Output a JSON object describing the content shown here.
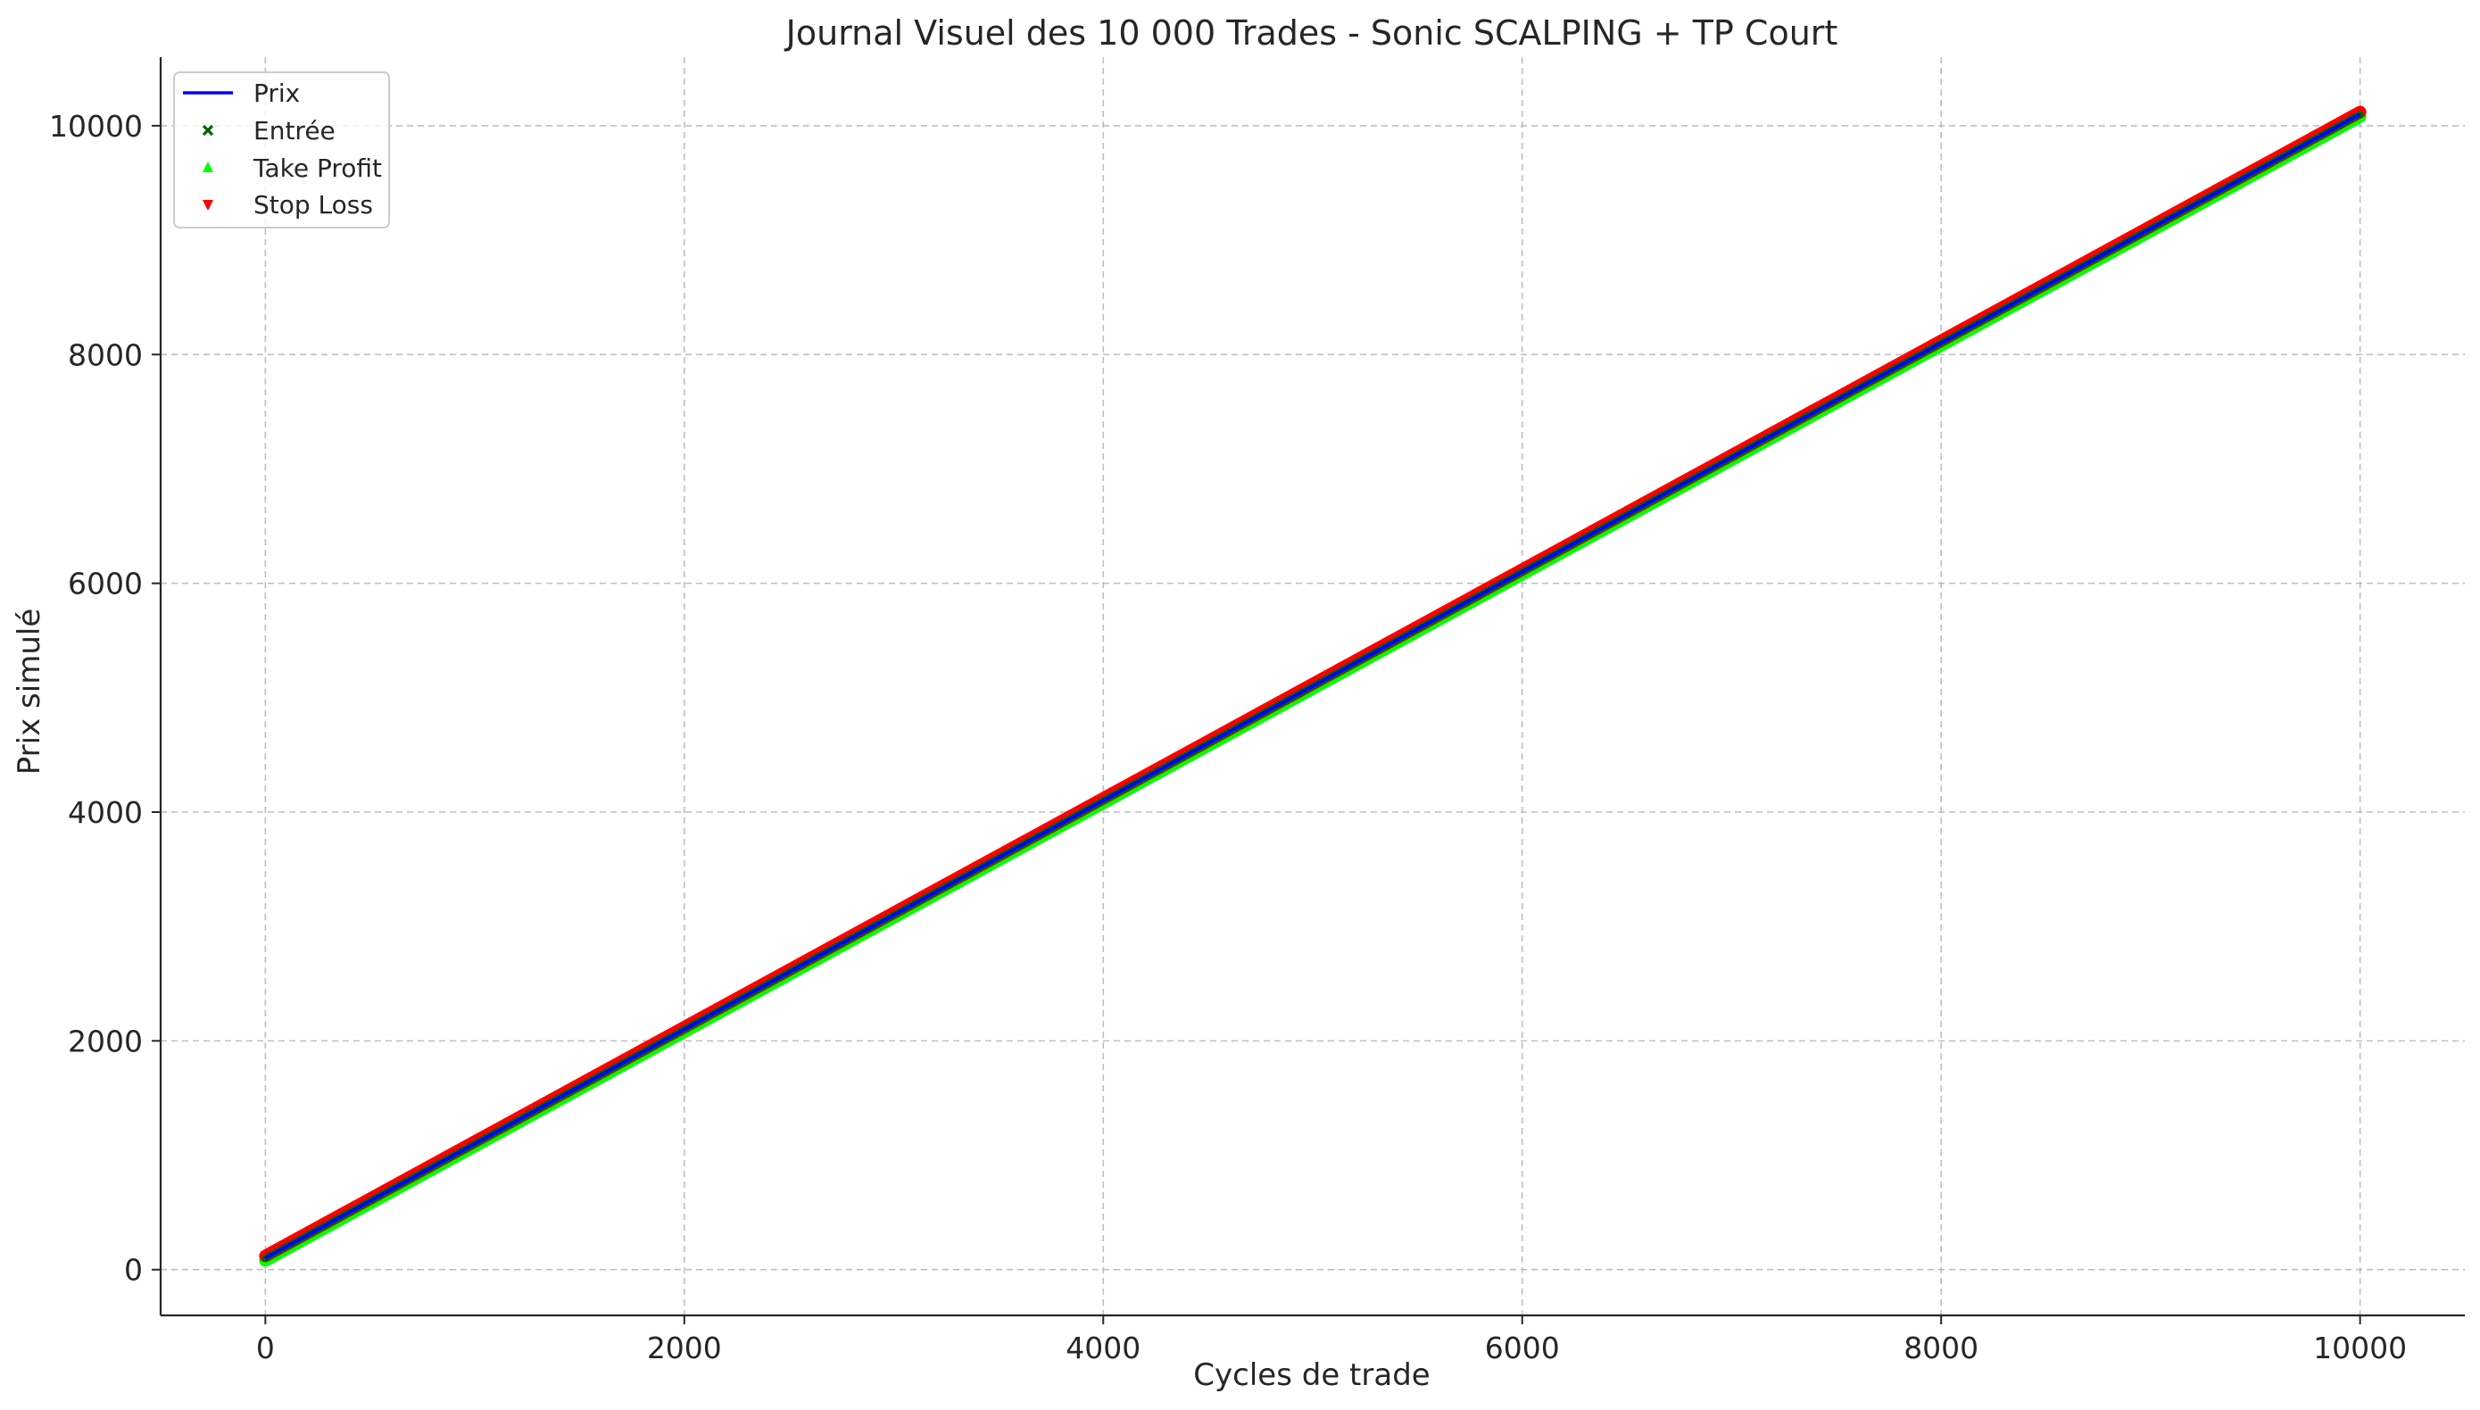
{
  "chart_data": {
    "type": "line",
    "title": "Journal Visuel des 10 000 Trades - Sonic SCALPING + TP Court",
    "xlabel": "Cycles de trade",
    "ylabel": "Prix simulé",
    "xlim": [
      -500,
      10500
    ],
    "ylim": [
      -400,
      10600
    ],
    "xticks": [
      0,
      2000,
      4000,
      6000,
      8000,
      10000
    ],
    "yticks": [
      0,
      2000,
      4000,
      6000,
      8000,
      10000
    ],
    "xtick_labels": [
      "0",
      "2000",
      "4000",
      "6000",
      "8000",
      "10000"
    ],
    "ytick_labels": [
      "0",
      "2000",
      "4000",
      "6000",
      "8000",
      "10000"
    ],
    "grid": true,
    "legend_position": "top-left",
    "series": [
      {
        "name": "Prix",
        "kind": "line",
        "color": "#0000ff",
        "x": [
          0,
          10000
        ],
        "y": [
          100,
          10100
        ]
      },
      {
        "name": "Entrée",
        "kind": "scatter",
        "marker": "x",
        "color": "#006400",
        "x": [
          0,
          10000
        ],
        "y": [
          100,
          10100
        ]
      },
      {
        "name": "Take Profit",
        "kind": "scatter",
        "marker": "triangle-up",
        "color": "#00ff00",
        "x": [
          0,
          10000
        ],
        "y": [
          80,
          10080
        ]
      },
      {
        "name": "Stop Loss",
        "kind": "scatter",
        "marker": "triangle-down",
        "color": "#ff0000",
        "x": [
          0,
          10000
        ],
        "y": [
          120,
          10120
        ]
      }
    ]
  }
}
